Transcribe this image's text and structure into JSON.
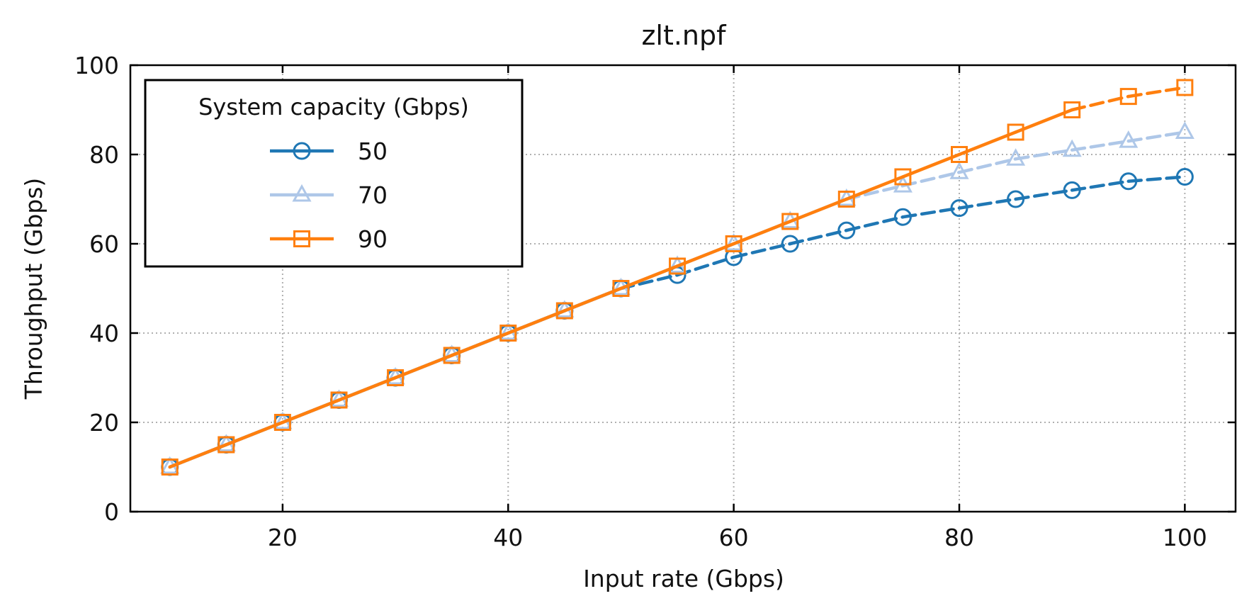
{
  "chart_data": {
    "type": "line",
    "title": "zlt.npf",
    "xlabel": "Input rate (Gbps)",
    "ylabel": "Throughput (Gbps)",
    "xlim": [
      6.5,
      104.5
    ],
    "ylim": [
      0,
      100
    ],
    "xticks": [
      20,
      40,
      60,
      80,
      100
    ],
    "yticks": [
      0,
      20,
      40,
      60,
      80,
      100
    ],
    "grid": true,
    "legend": {
      "title": "System capacity (Gbps)",
      "placement": "top-left"
    },
    "x": [
      10,
      15,
      20,
      25,
      30,
      35,
      40,
      45,
      50,
      55,
      60,
      65,
      70,
      75,
      80,
      85,
      90,
      95,
      100
    ],
    "series": [
      {
        "name": "50",
        "color": "#1f77b4",
        "marker": "circle",
        "capacity": 50,
        "values": [
          10,
          15,
          20,
          25,
          30,
          35,
          40,
          45,
          50,
          53,
          57,
          60,
          63,
          66,
          68,
          70,
          72,
          74,
          75
        ]
      },
      {
        "name": "70",
        "color": "#aec7e8",
        "marker": "triangle",
        "capacity": 70,
        "values": [
          10,
          15,
          20,
          25,
          30,
          35,
          40,
          45,
          50,
          55,
          60,
          65,
          70,
          73,
          76,
          79,
          81,
          83,
          85
        ]
      },
      {
        "name": "90",
        "color": "#ff7f0e",
        "marker": "square",
        "capacity": 90,
        "values": [
          10,
          15,
          20,
          25,
          30,
          35,
          40,
          45,
          50,
          55,
          60,
          65,
          70,
          75,
          80,
          85,
          90,
          93,
          95
        ]
      }
    ]
  }
}
